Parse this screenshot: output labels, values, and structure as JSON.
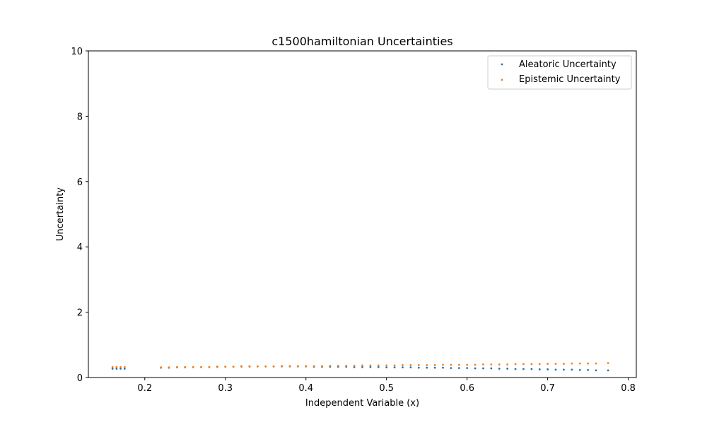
{
  "chart_data": {
    "type": "scatter",
    "title": "c1500hamiltonian Uncertainties",
    "xlabel": "Independent Variable (x)",
    "ylabel": "Uncertainty",
    "xlim": [
      0.13,
      0.81
    ],
    "ylim": [
      0,
      10
    ],
    "xticks": [
      0.2,
      0.3,
      0.4,
      0.5,
      0.6,
      0.7,
      0.8
    ],
    "xtick_labels": [
      "0.2",
      "0.3",
      "0.4",
      "0.5",
      "0.6",
      "0.7",
      "0.8"
    ],
    "yticks": [
      0,
      2,
      4,
      6,
      8,
      10
    ],
    "ytick_labels": [
      "0",
      "2",
      "4",
      "6",
      "8",
      "10"
    ],
    "grid": false,
    "legend_position": "top-right",
    "series": [
      {
        "name": "Aleatoric Uncertainty",
        "color": "#1f77b4",
        "x": [
          0.16,
          0.165,
          0.17,
          0.175,
          0.22,
          0.23,
          0.24,
          0.25,
          0.26,
          0.27,
          0.28,
          0.29,
          0.3,
          0.31,
          0.32,
          0.33,
          0.34,
          0.35,
          0.36,
          0.37,
          0.38,
          0.39,
          0.4,
          0.41,
          0.42,
          0.43,
          0.44,
          0.45,
          0.46,
          0.47,
          0.48,
          0.49,
          0.5,
          0.51,
          0.52,
          0.53,
          0.54,
          0.55,
          0.56,
          0.57,
          0.58,
          0.59,
          0.6,
          0.61,
          0.62,
          0.63,
          0.64,
          0.65,
          0.66,
          0.67,
          0.68,
          0.69,
          0.7,
          0.71,
          0.72,
          0.73,
          0.74,
          0.75,
          0.76,
          0.775
        ],
        "y": [
          0.27,
          0.27,
          0.27,
          0.27,
          0.3,
          0.3,
          0.31,
          0.31,
          0.32,
          0.32,
          0.32,
          0.33,
          0.33,
          0.33,
          0.34,
          0.34,
          0.34,
          0.34,
          0.34,
          0.34,
          0.34,
          0.34,
          0.34,
          0.33,
          0.33,
          0.33,
          0.33,
          0.33,
          0.32,
          0.32,
          0.32,
          0.32,
          0.31,
          0.31,
          0.31,
          0.31,
          0.3,
          0.3,
          0.3,
          0.3,
          0.29,
          0.29,
          0.29,
          0.28,
          0.28,
          0.28,
          0.27,
          0.27,
          0.26,
          0.26,
          0.26,
          0.25,
          0.25,
          0.24,
          0.24,
          0.24,
          0.23,
          0.23,
          0.22,
          0.22
        ]
      },
      {
        "name": "Epistemic Uncertainty",
        "color": "#ff7f0e",
        "x": [
          0.16,
          0.165,
          0.17,
          0.175,
          0.22,
          0.23,
          0.24,
          0.25,
          0.26,
          0.27,
          0.28,
          0.29,
          0.3,
          0.31,
          0.32,
          0.33,
          0.34,
          0.35,
          0.36,
          0.37,
          0.38,
          0.39,
          0.4,
          0.41,
          0.42,
          0.43,
          0.44,
          0.45,
          0.46,
          0.47,
          0.48,
          0.49,
          0.5,
          0.51,
          0.52,
          0.53,
          0.54,
          0.55,
          0.56,
          0.57,
          0.58,
          0.59,
          0.6,
          0.61,
          0.62,
          0.63,
          0.64,
          0.65,
          0.66,
          0.67,
          0.68,
          0.69,
          0.7,
          0.71,
          0.72,
          0.73,
          0.74,
          0.75,
          0.76,
          0.775
        ],
        "y": [
          0.32,
          0.32,
          0.32,
          0.32,
          0.31,
          0.31,
          0.32,
          0.32,
          0.32,
          0.32,
          0.32,
          0.32,
          0.33,
          0.33,
          0.33,
          0.33,
          0.34,
          0.34,
          0.34,
          0.35,
          0.35,
          0.35,
          0.35,
          0.35,
          0.35,
          0.36,
          0.36,
          0.36,
          0.36,
          0.37,
          0.37,
          0.37,
          0.37,
          0.37,
          0.38,
          0.38,
          0.38,
          0.38,
          0.38,
          0.39,
          0.39,
          0.39,
          0.39,
          0.39,
          0.4,
          0.4,
          0.4,
          0.4,
          0.41,
          0.41,
          0.41,
          0.41,
          0.42,
          0.42,
          0.42,
          0.43,
          0.43,
          0.43,
          0.43,
          0.44
        ]
      }
    ]
  }
}
